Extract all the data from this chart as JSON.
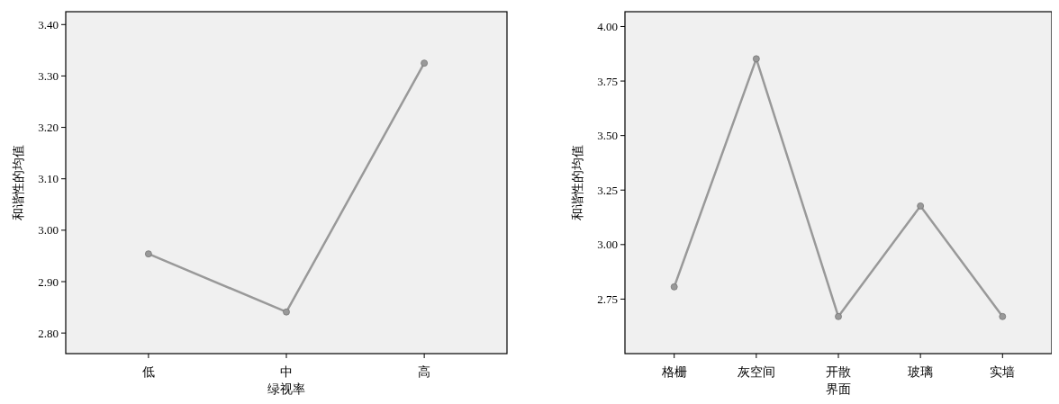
{
  "chart_data": [
    {
      "type": "line",
      "xlabel": "绿视率",
      "ylabel": "和谐性的均值",
      "categories": [
        "低",
        "中",
        "高"
      ],
      "series": [
        {
          "color": "#999999",
          "values": [
            2.954,
            2.841,
            3.325
          ]
        }
      ],
      "ylim": [
        2.76,
        3.425
      ],
      "yticks": [
        {
          "value": 2.8,
          "label": "2.80"
        },
        {
          "value": 2.9,
          "label": "2.90"
        },
        {
          "value": 3.0,
          "label": "3.00"
        },
        {
          "value": 3.1,
          "label": "3.10"
        },
        {
          "value": 3.2,
          "label": "3.20"
        },
        {
          "value": 3.3,
          "label": "3.30"
        },
        {
          "value": 3.4,
          "label": "3.40"
        }
      ],
      "marker": "circle"
    },
    {
      "type": "line",
      "xlabel": "界面",
      "ylabel": "和谐性的均值",
      "categories": [
        "格栅",
        "灰空间",
        "开散",
        "玻璃",
        "实墙"
      ],
      "series": [
        {
          "color": "#999999",
          "values": [
            2.806,
            3.852,
            2.67,
            3.177,
            2.67
          ]
        }
      ],
      "ylim": [
        2.5,
        4.068
      ],
      "yticks": [
        {
          "value": 2.75,
          "label": "2.75"
        },
        {
          "value": 3.0,
          "label": "3.00"
        },
        {
          "value": 3.25,
          "label": "3.25"
        },
        {
          "value": 3.5,
          "label": "3.50"
        },
        {
          "value": 3.75,
          "label": "3.75"
        },
        {
          "value": 4.0,
          "label": "4.00"
        }
      ],
      "marker": "circle"
    }
  ]
}
